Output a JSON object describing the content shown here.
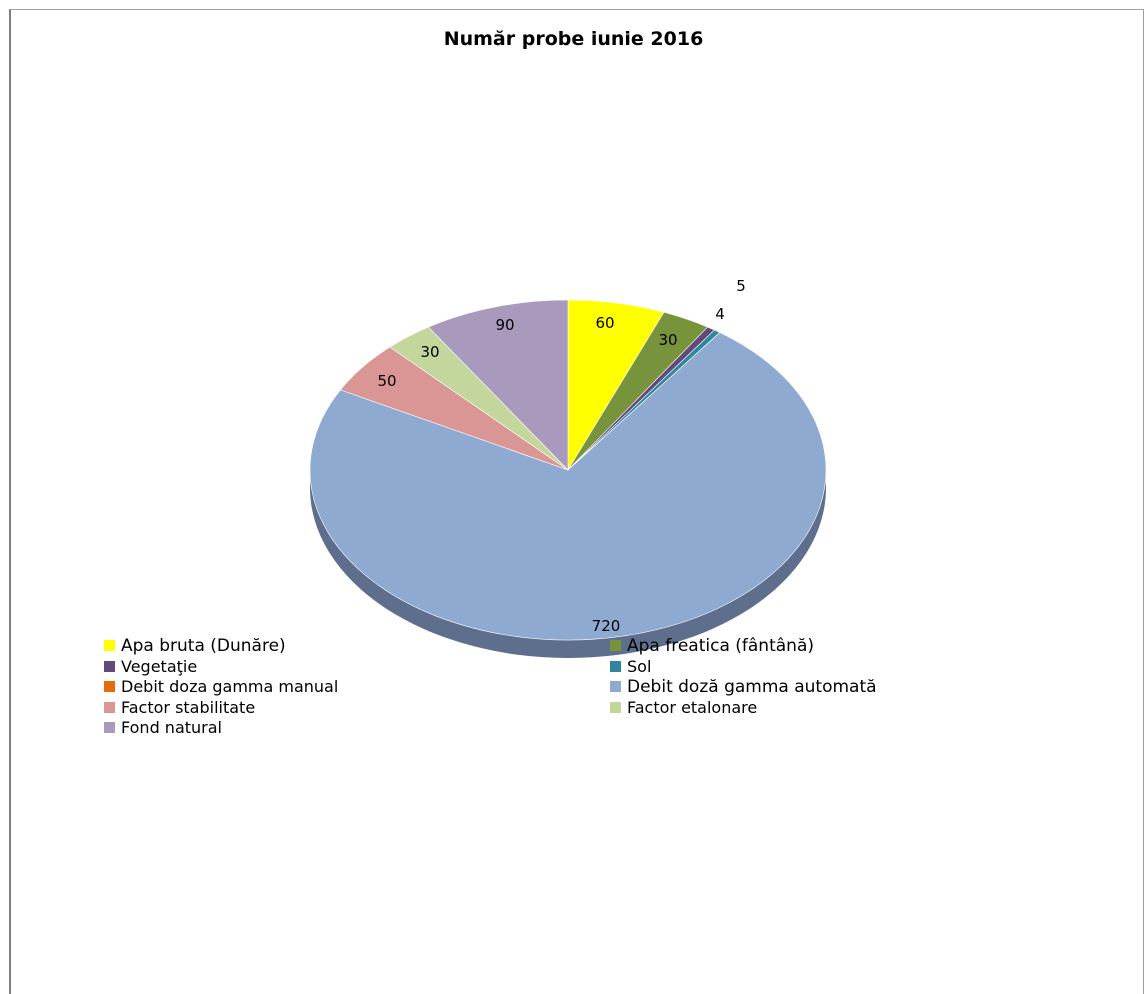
{
  "chart_data": {
    "type": "pie",
    "title": "Număr probe iunie 2016",
    "categories": [
      "Apa bruta (Dunăre)",
      "Apa freatica (fântână)",
      "Vegetaţie",
      "Sol",
      "Debit  doza gamma manual",
      "Debit doză gamma automată",
      "Factor stabilitate",
      "Factor etalonare",
      "Fond natural"
    ],
    "values": [
      60,
      30,
      5,
      4,
      0,
      720,
      50,
      30,
      90
    ],
    "data_labels": [
      "60",
      "30",
      "5",
      "4",
      "",
      "720",
      "50",
      "30",
      "90"
    ],
    "colors": [
      "#ffff00",
      "#77933c",
      "#604a7b",
      "#31859c",
      "#e46c0a",
      "#8eaad0",
      "#d99694",
      "#c3d69b",
      "#a899bd"
    ],
    "legend_position": "bottom"
  }
}
